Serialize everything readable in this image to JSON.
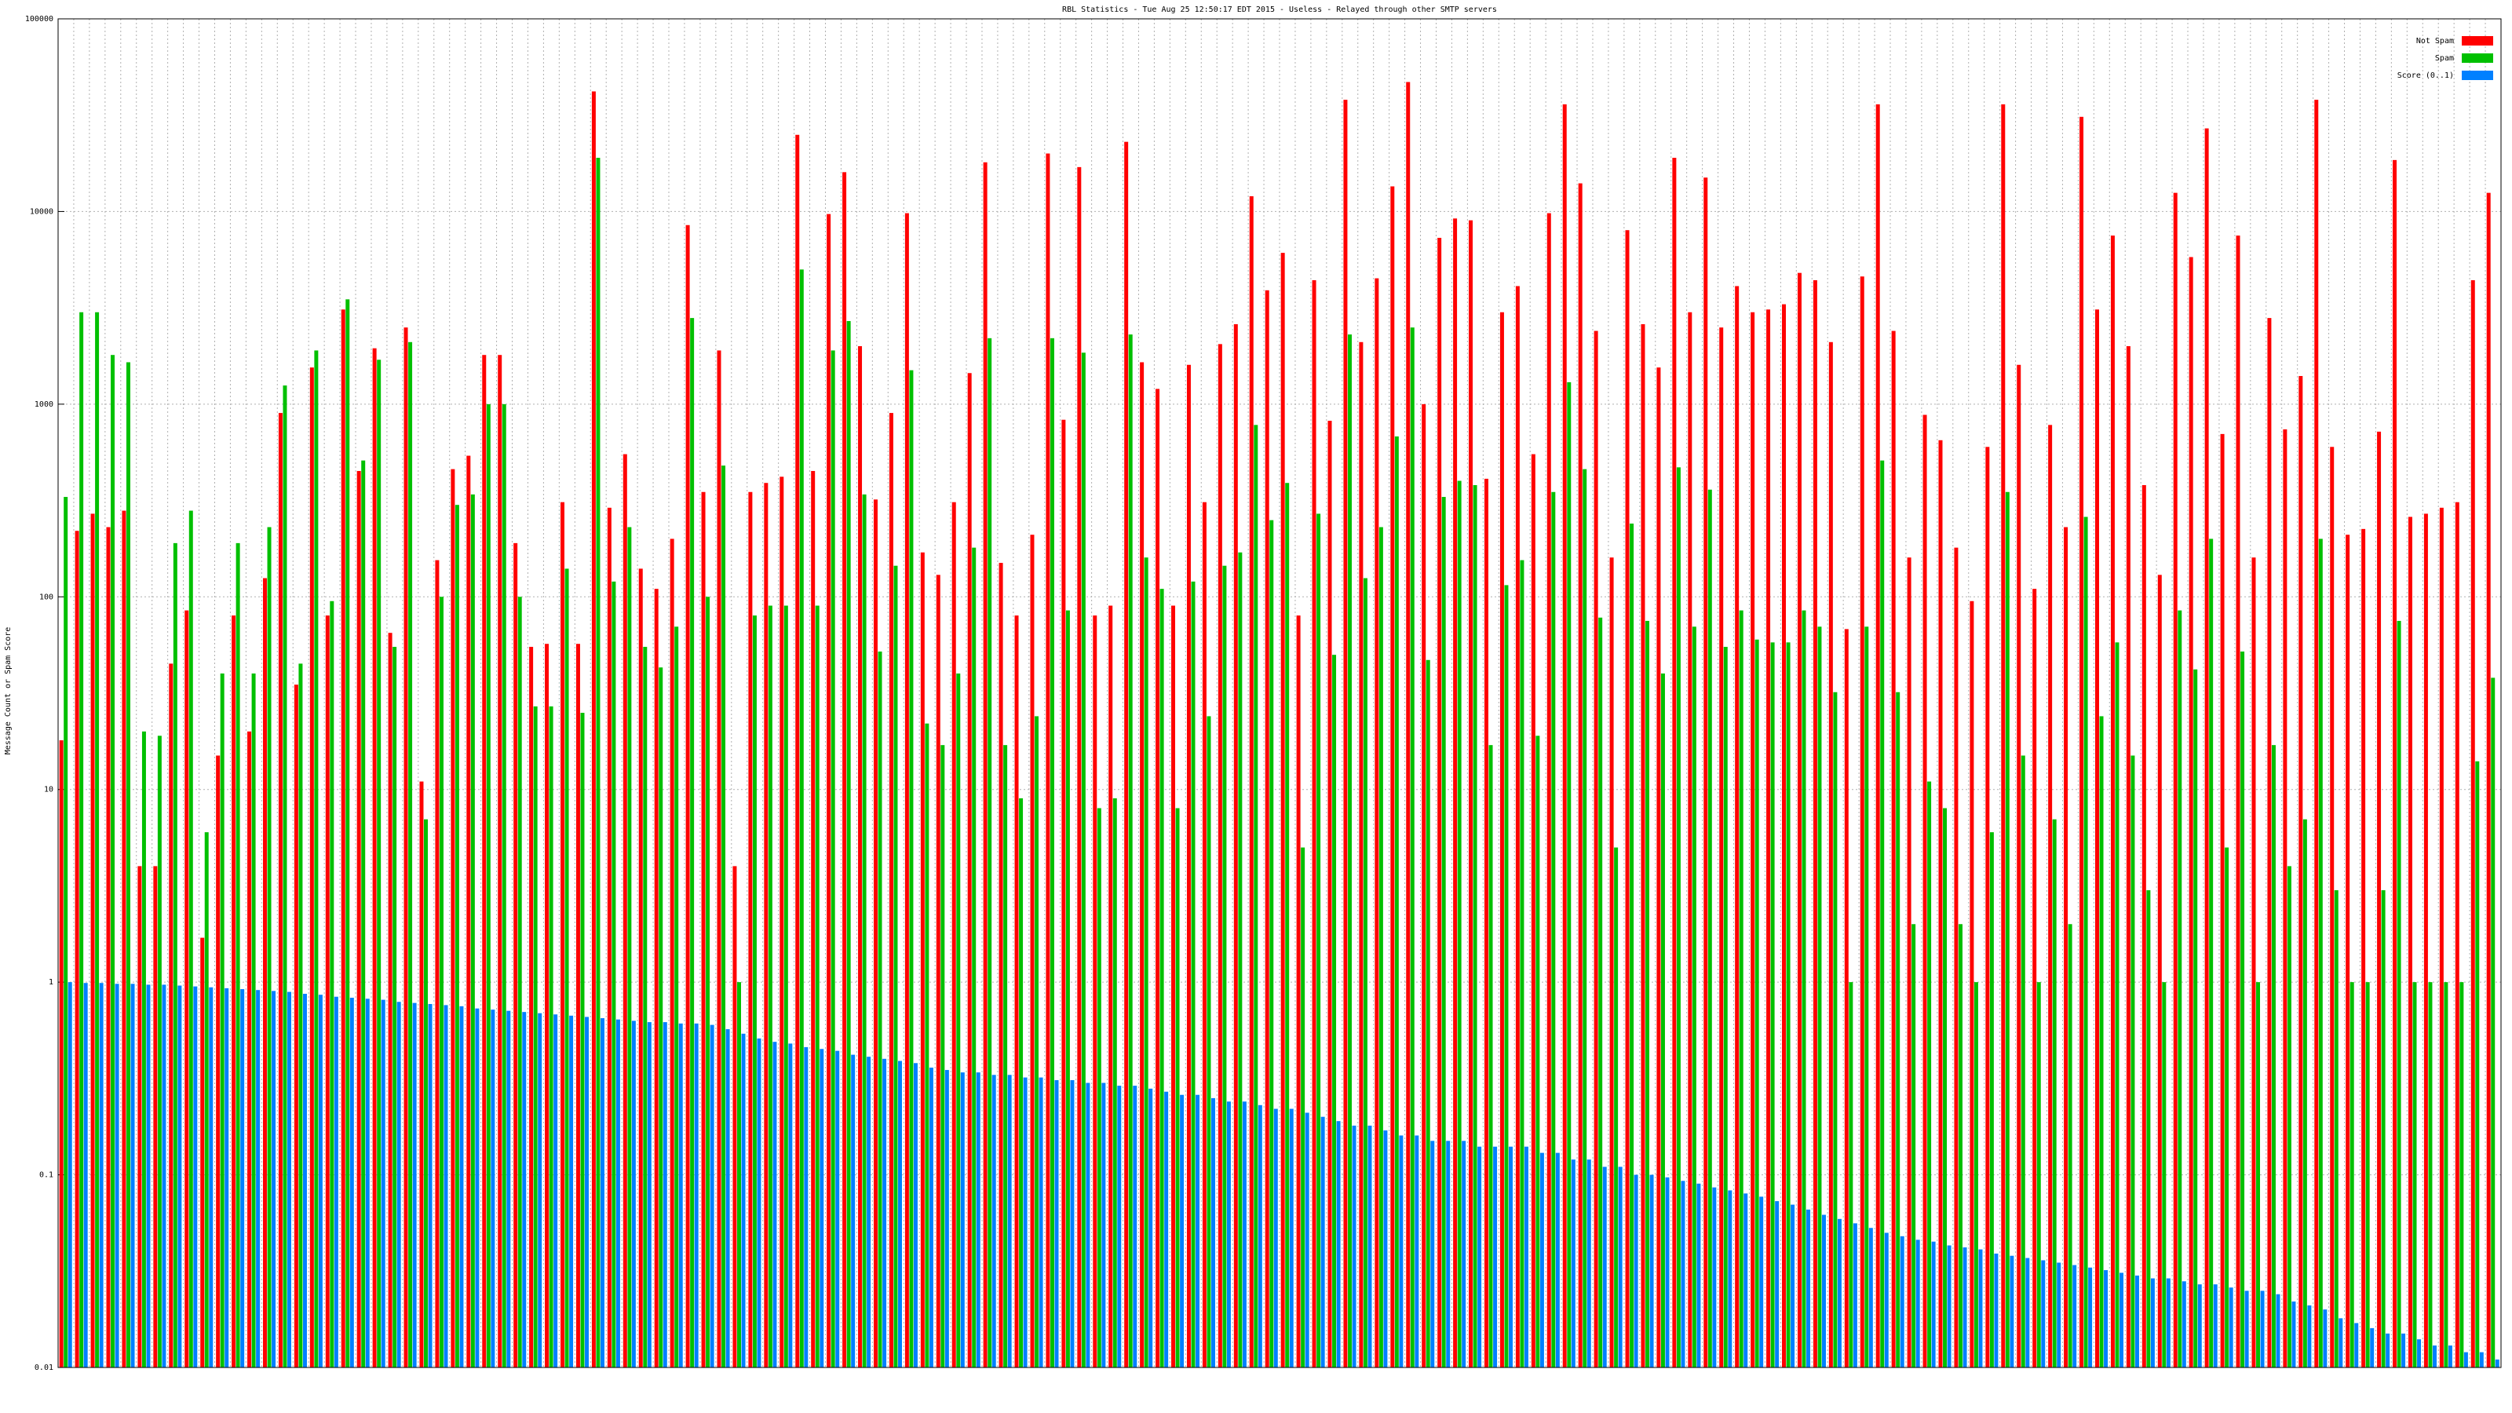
{
  "chart_data": {
    "type": "bar",
    "title": "RBL Statistics - Tue Aug 25 12:50:17 EDT 2015 - Useless - Relayed through other SMTP servers",
    "y_label": "Message Count or Spam Score",
    "log_y": true,
    "grid": true,
    "legend": "top-right",
    "ylim": [
      0.01,
      100000
    ],
    "yticks": [
      0.01,
      0.1,
      1,
      10,
      100,
      1000,
      10000,
      100000
    ],
    "categories": [
      null,
      null,
      null,
      null,
      null,
      null,
      null,
      null,
      null,
      null,
      null,
      null,
      null,
      null,
      null,
      null,
      null,
      null,
      null,
      null,
      null,
      null,
      null,
      null,
      null,
      null,
      null,
      null,
      null,
      null,
      null,
      null,
      null,
      null,
      null,
      null,
      null,
      null,
      null,
      null,
      null,
      null,
      null,
      null,
      null,
      null,
      null,
      null,
      null,
      null,
      null,
      null,
      null,
      null,
      null,
      null,
      null,
      null,
      null,
      null,
      null,
      null,
      null,
      null,
      null,
      null,
      null,
      null,
      null,
      null,
      null,
      null,
      null,
      null,
      null,
      null,
      null,
      null,
      null,
      null,
      null,
      null,
      null,
      null,
      null,
      null,
      null,
      null,
      null,
      null,
      null,
      null,
      null,
      null,
      null,
      null,
      null,
      null,
      null,
      null,
      null,
      null,
      null,
      null,
      null,
      null,
      null,
      null,
      null,
      null,
      null,
      null,
      null,
      null,
      null,
      null,
      null,
      null,
      null,
      null,
      null,
      null,
      null,
      null,
      null,
      null,
      null,
      null,
      null,
      null,
      null,
      null,
      null,
      null,
      null,
      null,
      null,
      null,
      null,
      null,
      null,
      null,
      null,
      null,
      null,
      null,
      null,
      null,
      null,
      null,
      null,
      null,
      null,
      null,
      null,
      null
    ],
    "series": [
      {
        "name": "Not Spam",
        "color": "#ff0000",
        "values": [
          18,
          220,
          270,
          230,
          280,
          4,
          4,
          45,
          85,
          1.7,
          15,
          80,
          20,
          125,
          900,
          35,
          1550,
          80,
          3100,
          450,
          1950,
          65,
          2500,
          11,
          155,
          460,
          540,
          1800,
          1800,
          190,
          55,
          57,
          310,
          57,
          42000,
          290,
          550,
          140,
          110,
          200,
          8500,
          350,
          1900,
          4,
          350,
          390,
          420,
          25000,
          450,
          9700,
          16000,
          2000,
          320,
          900,
          9800,
          170,
          130,
          310,
          1450,
          18000,
          150,
          80,
          210,
          20000,
          830,
          17000,
          80,
          90,
          23000,
          1650,
          1200,
          90,
          1600,
          310,
          2050,
          2600,
          12000,
          3900,
          6100,
          80,
          4400,
          820,
          38000,
          2100,
          4500,
          13500,
          47000,
          1000,
          7300,
          9200,
          9000,
          410,
          3000,
          4100,
          550,
          9800,
          36000,
          14000,
          2400,
          160,
          8000,
          2600,
          1550,
          19000,
          3000,
          15000,
          2500,
          4100,
          3000,
          3100,
          3300,
          4800,
          4400,
          2100,
          68,
          4600,
          36000,
          2400,
          160,
          880,
          650,
          180,
          95,
          600,
          36000,
          1600,
          110,
          780,
          230,
          31000,
          3100,
          7500,
          2000,
          380,
          130,
          12500,
          5800,
          27000,
          700,
          7500,
          160,
          2800,
          740,
          1400,
          38000,
          600,
          210,
          225,
          720,
          18500,
          260,
          270,
          290,
          310,
          4400,
          12500
        ]
      },
      {
        "name": "Spam",
        "color": "#00c000",
        "values": [
          330,
          3000,
          3000,
          1800,
          1650,
          20,
          19,
          190,
          280,
          6,
          40,
          190,
          40,
          230,
          1250,
          45,
          1900,
          95,
          3500,
          510,
          1700,
          55,
          2100,
          7,
          100,
          300,
          340,
          1000,
          1000,
          100,
          27,
          27,
          140,
          25,
          19000,
          120,
          230,
          55,
          43,
          70,
          2800,
          100,
          480,
          1,
          80,
          90,
          90,
          5000,
          90,
          1900,
          2700,
          340,
          52,
          145,
          1500,
          22,
          17,
          40,
          180,
          2200,
          17,
          9,
          24,
          2200,
          85,
          1850,
          8,
          9,
          2300,
          160,
          110,
          8,
          120,
          24,
          145,
          170,
          780,
          250,
          390,
          5,
          270,
          50,
          2300,
          125,
          230,
          680,
          2500,
          47,
          330,
          400,
          380,
          17,
          115,
          155,
          19,
          350,
          1300,
          460,
          78,
          5,
          240,
          75,
          40,
          470,
          70,
          360,
          55,
          85,
          60,
          58,
          58,
          85,
          70,
          32,
          1,
          70,
          510,
          32,
          2,
          11,
          8,
          2,
          1,
          6,
          350,
          15,
          1,
          7,
          2,
          260,
          24,
          58,
          15,
          3,
          1,
          85,
          42,
          200,
          5,
          52,
          1,
          17,
          4,
          7,
          200,
          3,
          1,
          1,
          3,
          75,
          1,
          1,
          1,
          1,
          14,
          38
        ]
      },
      {
        "name": "Score (0..1)",
        "color": "#0080ff",
        "values": [
          1.0,
          0.99,
          0.99,
          0.98,
          0.98,
          0.97,
          0.97,
          0.96,
          0.95,
          0.94,
          0.93,
          0.92,
          0.91,
          0.9,
          0.89,
          0.87,
          0.86,
          0.84,
          0.83,
          0.82,
          0.81,
          0.79,
          0.78,
          0.77,
          0.76,
          0.75,
          0.73,
          0.72,
          0.71,
          0.7,
          0.69,
          0.68,
          0.67,
          0.66,
          0.65,
          0.64,
          0.63,
          0.62,
          0.62,
          0.61,
          0.61,
          0.6,
          0.57,
          0.54,
          0.51,
          0.49,
          0.48,
          0.46,
          0.45,
          0.44,
          0.42,
          0.41,
          0.4,
          0.39,
          0.38,
          0.36,
          0.35,
          0.34,
          0.34,
          0.33,
          0.33,
          0.32,
          0.32,
          0.31,
          0.31,
          0.3,
          0.3,
          0.29,
          0.29,
          0.28,
          0.27,
          0.26,
          0.26,
          0.25,
          0.24,
          0.24,
          0.23,
          0.22,
          0.22,
          0.21,
          0.2,
          0.19,
          0.18,
          0.18,
          0.17,
          0.16,
          0.16,
          0.15,
          0.15,
          0.15,
          0.14,
          0.14,
          0.14,
          0.14,
          0.13,
          0.13,
          0.12,
          0.12,
          0.11,
          0.11,
          0.1,
          0.1,
          0.097,
          0.093,
          0.09,
          0.086,
          0.083,
          0.08,
          0.077,
          0.073,
          0.07,
          0.066,
          0.062,
          0.059,
          0.056,
          0.053,
          0.05,
          0.048,
          0.046,
          0.045,
          0.043,
          0.042,
          0.041,
          0.039,
          0.038,
          0.037,
          0.036,
          0.035,
          0.034,
          0.033,
          0.032,
          0.031,
          0.03,
          0.029,
          0.029,
          0.028,
          0.027,
          0.027,
          0.026,
          0.025,
          0.025,
          0.024,
          0.022,
          0.021,
          0.02,
          0.018,
          0.017,
          0.016,
          0.015,
          0.015,
          0.014,
          0.013,
          0.013,
          0.012,
          0.012,
          0.011
        ]
      }
    ]
  }
}
